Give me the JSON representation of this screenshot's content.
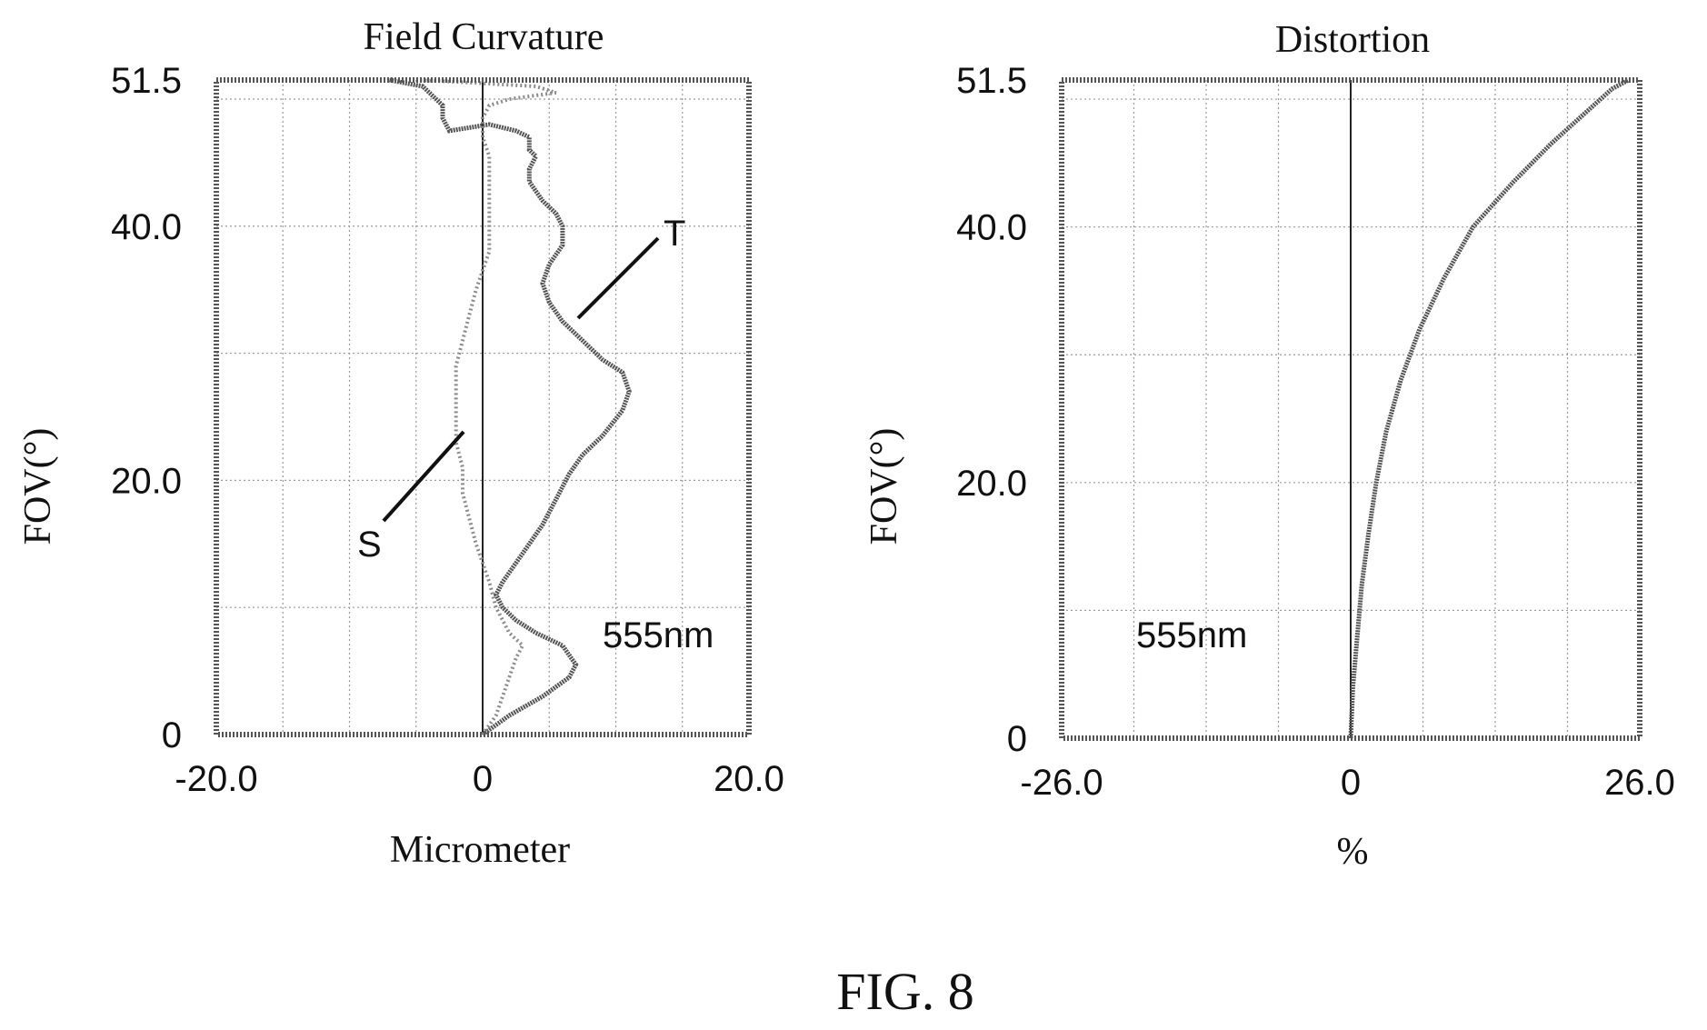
{
  "figure_label": "FIG. 8",
  "chart_data": [
    {
      "type": "line",
      "title": "Field Curvature",
      "xlabel": "Micrometer",
      "ylabel": "FOV(°)",
      "xlim": [
        -20.0,
        20.0
      ],
      "ylim": [
        0,
        51.5
      ],
      "x_tick_labels": [
        "-20.0",
        "0",
        "20.0"
      ],
      "y_tick_labels": [
        "0",
        "20.0",
        "40.0",
        "51.5"
      ],
      "grid": true,
      "wavelength_label": "555nm",
      "series": [
        {
          "name": "T",
          "style": "solid",
          "points": [
            [
              0.0,
              0.0
            ],
            [
              2.0,
              1.5
            ],
            [
              4.5,
              3.0
            ],
            [
              6.5,
              4.5
            ],
            [
              7.0,
              5.5
            ],
            [
              6.0,
              7.0
            ],
            [
              4.0,
              8.0
            ],
            [
              2.5,
              9.0
            ],
            [
              1.5,
              10.0
            ],
            [
              1.0,
              11.0
            ],
            [
              1.5,
              12.0
            ],
            [
              2.5,
              13.5
            ],
            [
              3.5,
              15.0
            ],
            [
              4.5,
              16.5
            ],
            [
              5.5,
              18.5
            ],
            [
              6.5,
              20.5
            ],
            [
              7.5,
              22.0
            ],
            [
              9.0,
              23.5
            ],
            [
              10.5,
              25.5
            ],
            [
              11.0,
              27.0
            ],
            [
              10.5,
              28.5
            ],
            [
              9.0,
              29.5
            ],
            [
              7.5,
              31.0
            ],
            [
              6.0,
              32.5
            ],
            [
              5.0,
              34.0
            ],
            [
              4.5,
              35.5
            ],
            [
              5.0,
              37.0
            ],
            [
              6.0,
              38.5
            ],
            [
              6.0,
              40.0
            ],
            [
              5.5,
              41.0
            ],
            [
              4.5,
              42.0
            ],
            [
              3.5,
              43.5
            ],
            [
              3.5,
              44.5
            ],
            [
              4.0,
              45.5
            ],
            [
              3.5,
              46.0
            ],
            [
              3.5,
              47.0
            ],
            [
              2.5,
              47.5
            ],
            [
              0.5,
              48.0
            ],
            [
              -2.5,
              47.5
            ],
            [
              -3.0,
              48.5
            ],
            [
              -3.0,
              49.5
            ],
            [
              -3.5,
              50.0
            ],
            [
              -4.5,
              51.0
            ],
            [
              -7.0,
              51.5
            ]
          ]
        },
        {
          "name": "S",
          "style": "dotted",
          "points": [
            [
              0.0,
              0.0
            ],
            [
              1.0,
              1.5
            ],
            [
              1.5,
              3.0
            ],
            [
              2.0,
              4.5
            ],
            [
              2.5,
              6.0
            ],
            [
              3.0,
              7.0
            ],
            [
              2.0,
              8.0
            ],
            [
              1.0,
              10.0
            ],
            [
              0.5,
              12.0
            ],
            [
              0.0,
              13.5
            ],
            [
              -0.5,
              15.0
            ],
            [
              -1.0,
              17.0
            ],
            [
              -1.5,
              19.0
            ],
            [
              -1.5,
              21.0
            ],
            [
              -2.0,
              23.0
            ],
            [
              -2.0,
              25.0
            ],
            [
              -2.0,
              27.0
            ],
            [
              -2.0,
              29.0
            ],
            [
              -1.5,
              31.0
            ],
            [
              -1.0,
              33.0
            ],
            [
              -0.5,
              35.0
            ],
            [
              0.0,
              36.5
            ],
            [
              0.5,
              38.0
            ],
            [
              0.5,
              40.0
            ],
            [
              0.5,
              42.0
            ],
            [
              0.5,
              44.0
            ],
            [
              0.5,
              45.5
            ],
            [
              0.0,
              47.0
            ],
            [
              0.0,
              48.5
            ],
            [
              0.5,
              49.5
            ],
            [
              2.0,
              50.0
            ],
            [
              5.5,
              50.5
            ],
            [
              4.0,
              51.0
            ],
            [
              -1.0,
              51.3
            ],
            [
              -5.0,
              51.5
            ]
          ]
        }
      ]
    },
    {
      "type": "line",
      "title": "Distortion",
      "xlabel": "%",
      "ylabel": "FOV(°)",
      "xlim": [
        -26.0,
        26.0
      ],
      "ylim": [
        0,
        51.5
      ],
      "x_tick_labels": [
        "-26.0",
        "0",
        "26.0"
      ],
      "y_tick_labels": [
        "0",
        "20.0",
        "40.0",
        "51.5"
      ],
      "grid": true,
      "wavelength_label": "555nm",
      "series": [
        {
          "style": "solid",
          "points": [
            [
              0.0,
              0.0
            ],
            [
              0.2,
              4.0
            ],
            [
              0.6,
              8.0
            ],
            [
              1.0,
              12.0
            ],
            [
              1.6,
              16.0
            ],
            [
              2.3,
              20.0
            ],
            [
              3.2,
              24.0
            ],
            [
              4.5,
              28.0
            ],
            [
              6.2,
              32.0
            ],
            [
              8.4,
              36.0
            ],
            [
              11.0,
              40.0
            ],
            [
              14.6,
              43.5
            ],
            [
              18.0,
              46.5
            ],
            [
              21.2,
              49.0
            ],
            [
              23.5,
              50.8
            ],
            [
              25.0,
              51.5
            ]
          ]
        }
      ]
    }
  ]
}
